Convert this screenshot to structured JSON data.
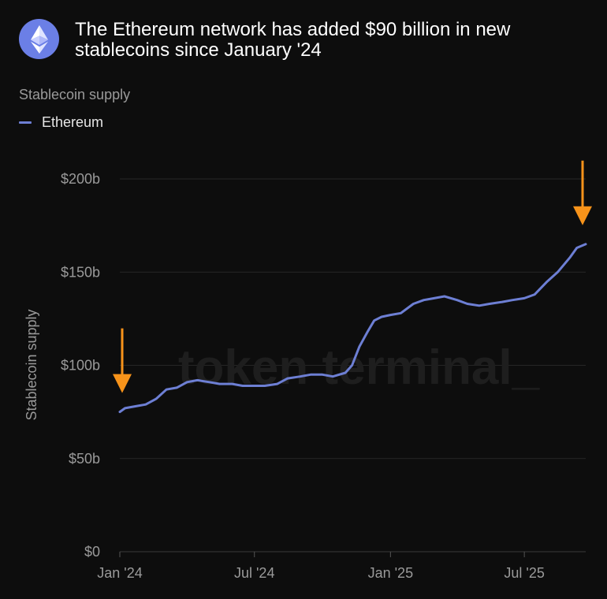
{
  "header": {
    "logo_icon": "ethereum-logo-icon",
    "title": "The Ethereum network has added $90 billion in new stablecoins since January '24"
  },
  "subtitle": "Stablecoin supply",
  "legend": {
    "series_name": "Ethereum",
    "color": "#6d7fd4"
  },
  "watermark": "token terminal_",
  "colors": {
    "background": "#0d0d0d",
    "line": "#6d7fd4",
    "arrow": "#f7931a",
    "grid": "#262626",
    "axis_text": "#9a9a9a"
  },
  "chart_data": {
    "type": "line",
    "ylabel": "Stablecoin supply",
    "y_ticks": [
      "$0",
      "$50b",
      "$100b",
      "$150b",
      "$200b"
    ],
    "y_tick_values": [
      0,
      50,
      100,
      150,
      200
    ],
    "x_ticks": [
      "Jan '24",
      "Jul '24",
      "Jan '25",
      "Jul '25"
    ],
    "x_tick_dates": [
      "2024-01-01",
      "2024-07-01",
      "2025-01-01",
      "2025-07-01"
    ],
    "ylim": [
      0,
      200
    ],
    "xlim": [
      "2024-01-01",
      "2025-09-22"
    ],
    "grid": true,
    "series": [
      {
        "name": "Ethereum",
        "x": [
          "2024-01-01",
          "2024-01-08",
          "2024-01-22",
          "2024-02-05",
          "2024-02-19",
          "2024-03-04",
          "2024-03-18",
          "2024-04-01",
          "2024-04-15",
          "2024-05-01",
          "2024-05-15",
          "2024-06-01",
          "2024-06-15",
          "2024-07-01",
          "2024-07-15",
          "2024-08-01",
          "2024-08-15",
          "2024-09-01",
          "2024-09-15",
          "2024-10-01",
          "2024-10-15",
          "2024-11-01",
          "2024-11-10",
          "2024-11-20",
          "2024-12-01",
          "2024-12-10",
          "2024-12-20",
          "2025-01-01",
          "2025-01-15",
          "2025-02-01",
          "2025-02-15",
          "2025-03-01",
          "2025-03-15",
          "2025-04-01",
          "2025-04-15",
          "2025-05-01",
          "2025-05-15",
          "2025-06-01",
          "2025-06-15",
          "2025-07-01",
          "2025-07-15",
          "2025-08-01",
          "2025-08-15",
          "2025-09-01",
          "2025-09-10",
          "2025-09-22"
        ],
        "values": [
          75,
          77,
          78,
          79,
          82,
          87,
          88,
          91,
          92,
          91,
          90,
          90,
          89,
          89,
          89,
          90,
          93,
          94,
          95,
          95,
          94,
          96,
          100,
          110,
          118,
          124,
          126,
          127,
          128,
          133,
          135,
          136,
          137,
          135,
          133,
          132,
          133,
          134,
          135,
          136,
          138,
          145,
          150,
          158,
          163,
          165
        ]
      }
    ],
    "annotations": [
      {
        "type": "arrow",
        "x": "2024-01-01",
        "color": "#f7931a"
      },
      {
        "type": "arrow",
        "x": "2025-09-22",
        "color": "#f7931a"
      }
    ]
  }
}
